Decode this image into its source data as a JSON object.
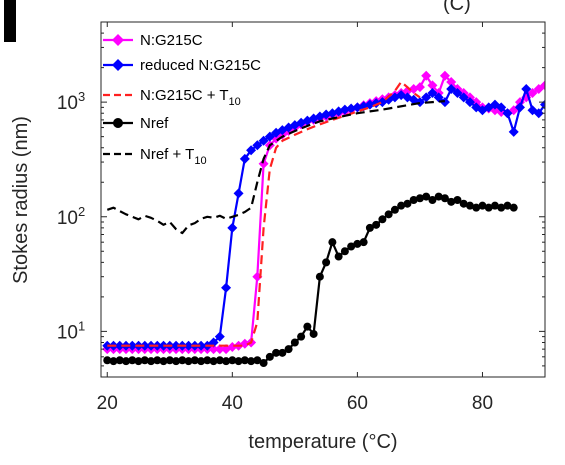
{
  "chart_data": {
    "type": "line",
    "panel_label": "I",
    "title_fragment": "(C)",
    "xlabel": "temperature (°C)",
    "ylabel": "Stokes radius (nm)",
    "xlim": [
      19,
      90
    ],
    "ylim": [
      4,
      5000
    ],
    "yscale": "log",
    "xticks": [
      20,
      40,
      60,
      80
    ],
    "xtick_labels": [
      "20",
      "40",
      "60",
      "80"
    ],
    "yticks": [
      10,
      100,
      1000
    ],
    "ytick_base": "10",
    "ytick_exponents": [
      "1",
      "2",
      "3"
    ],
    "grid": false,
    "legend_position": "top-left",
    "series": [
      {
        "name": "N:G215C",
        "color": "#ff00ff",
        "style": "solid",
        "marker": "diamond",
        "x": [
          20,
          21,
          22,
          23,
          24,
          25,
          26,
          27,
          28,
          29,
          30,
          31,
          32,
          33,
          34,
          35,
          36,
          37,
          38,
          39,
          40,
          41,
          42,
          43,
          44,
          45,
          46,
          47,
          48,
          49,
          50,
          51,
          52,
          53,
          54,
          55,
          56,
          57,
          58,
          59,
          60,
          61,
          62,
          63,
          64,
          65,
          66,
          67,
          68,
          69,
          70,
          71,
          72,
          73,
          74,
          75,
          76,
          77,
          78,
          79,
          80,
          81,
          82,
          83,
          84,
          85,
          86,
          87,
          88,
          89,
          90
        ],
        "y": [
          7,
          7,
          7,
          7,
          7,
          7,
          7,
          7,
          7,
          7,
          7,
          7,
          7,
          7,
          7,
          7,
          7,
          7,
          7,
          7,
          7.3,
          7.5,
          7.8,
          8,
          30,
          290,
          420,
          480,
          520,
          560,
          600,
          640,
          680,
          700,
          730,
          750,
          780,
          800,
          830,
          860,
          900,
          940,
          980,
          1020,
          1060,
          1100,
          1150,
          1200,
          1250,
          1300,
          1350,
          1700,
          1400,
          1200,
          1700,
          1500,
          1300,
          1200,
          1100,
          1000,
          900,
          880,
          850,
          820,
          800,
          850,
          1000,
          1100,
          1200,
          1300,
          1400
        ]
      },
      {
        "name": "reduced N:G215C",
        "color": "#0000ff",
        "style": "solid",
        "marker": "diamond",
        "x": [
          20,
          21,
          22,
          23,
          24,
          25,
          26,
          27,
          28,
          29,
          30,
          31,
          32,
          33,
          34,
          35,
          36,
          37,
          38,
          39,
          40,
          41,
          42,
          43,
          44,
          45,
          46,
          47,
          48,
          49,
          50,
          51,
          52,
          53,
          54,
          55,
          56,
          57,
          58,
          59,
          60,
          61,
          62,
          63,
          64,
          65,
          66,
          67,
          68,
          69,
          70,
          71,
          72,
          73,
          74,
          75,
          76,
          77,
          78,
          79,
          80,
          81,
          82,
          83,
          84,
          85,
          86,
          87,
          88,
          89,
          90
        ],
        "y": [
          7.5,
          7.5,
          7.5,
          7.5,
          7.5,
          7.5,
          7.5,
          7.5,
          7.5,
          7.5,
          7.5,
          7.5,
          7.5,
          7.5,
          7.5,
          7.5,
          7.5,
          8,
          9,
          24,
          80,
          160,
          320,
          380,
          420,
          460,
          500,
          540,
          570,
          600,
          630,
          660,
          690,
          720,
          750,
          780,
          800,
          830,
          860,
          880,
          900,
          920,
          950,
          980,
          1000,
          1050,
          1100,
          1150,
          1100,
          1050,
          1000,
          1100,
          1200,
          1100,
          1000,
          1300,
          1200,
          1100,
          1000,
          900,
          850,
          900,
          950,
          900,
          800,
          550,
          900,
          1300,
          850,
          800,
          950
        ]
      },
      {
        "name": "N:G215C + T",
        "name_subscript": "10",
        "color": "#ff2020",
        "style": "dashed",
        "marker": "none",
        "x": [
          20,
          22,
          24,
          26,
          28,
          30,
          32,
          34,
          36,
          38,
          40,
          42,
          43,
          44,
          45,
          46,
          47,
          48,
          50,
          52,
          54,
          56,
          58,
          60,
          62,
          64,
          66,
          67,
          68,
          69,
          70
        ],
        "y": [
          7.5,
          7.5,
          7.5,
          7.5,
          7.5,
          7.5,
          7.5,
          7.5,
          7.5,
          7.5,
          7.5,
          7.5,
          8,
          12,
          80,
          260,
          400,
          460,
          520,
          580,
          640,
          700,
          760,
          830,
          900,
          1000,
          1250,
          1500,
          1350,
          1200,
          1100
        ]
      },
      {
        "name": "Nref",
        "color": "#000000",
        "style": "solid",
        "marker": "circle",
        "x": [
          20,
          21,
          22,
          23,
          24,
          25,
          26,
          27,
          28,
          29,
          30,
          31,
          32,
          33,
          34,
          35,
          36,
          37,
          38,
          39,
          40,
          41,
          42,
          43,
          44,
          45,
          46,
          47,
          48,
          49,
          50,
          51,
          52,
          53,
          54,
          55,
          56,
          57,
          58,
          59,
          60,
          61,
          62,
          63,
          64,
          65,
          66,
          67,
          68,
          69,
          70,
          71,
          72,
          73,
          74,
          75,
          76,
          77,
          78,
          79,
          80,
          81,
          82,
          83,
          84,
          85
        ],
        "y": [
          5.6,
          5.5,
          5.6,
          5.5,
          5.6,
          5.5,
          5.6,
          5.5,
          5.6,
          5.5,
          5.6,
          5.5,
          5.6,
          5.5,
          5.6,
          5.5,
          5.6,
          5.5,
          5.6,
          5.5,
          5.6,
          5.5,
          5.6,
          5.5,
          5.6,
          5.3,
          6,
          6.5,
          6.5,
          7,
          8,
          9,
          11,
          9.5,
          30,
          40,
          60,
          45,
          50,
          55,
          58,
          60,
          80,
          85,
          95,
          105,
          115,
          125,
          130,
          140,
          145,
          150,
          140,
          150,
          145,
          135,
          140,
          130,
          125,
          120,
          125,
          120,
          125,
          120,
          125,
          120
        ]
      },
      {
        "name": "Nref + T",
        "name_subscript": "10",
        "color": "#000000",
        "style": "dashed",
        "marker": "none",
        "x": [
          20,
          21,
          22,
          23,
          24,
          25,
          26,
          27,
          28,
          29,
          30,
          31,
          32,
          33,
          34,
          35,
          36,
          37,
          38,
          39,
          40,
          41,
          42,
          43,
          44,
          45,
          46,
          48,
          50,
          52,
          54,
          56,
          58,
          60,
          62,
          64,
          66,
          68,
          70,
          72,
          74
        ],
        "y": [
          115,
          120,
          112,
          105,
          100,
          95,
          102,
          98,
          92,
          85,
          90,
          78,
          72,
          84,
          88,
          96,
          100,
          98,
          102,
          96,
          100,
          104,
          110,
          120,
          200,
          320,
          420,
          500,
          560,
          620,
          680,
          720,
          760,
          800,
          830,
          860,
          900,
          940,
          980,
          1000,
          1020
        ]
      }
    ]
  }
}
